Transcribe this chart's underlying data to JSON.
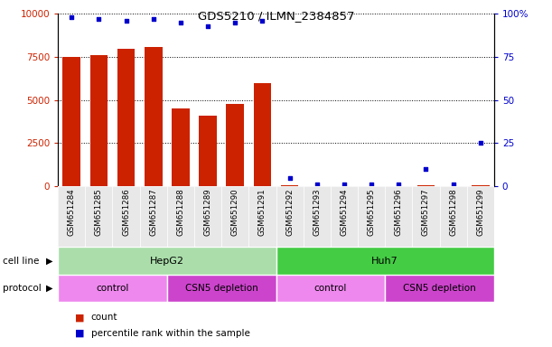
{
  "title": "GDS5210 / ILMN_2384857",
  "samples": [
    "GSM651284",
    "GSM651285",
    "GSM651286",
    "GSM651287",
    "GSM651288",
    "GSM651289",
    "GSM651290",
    "GSM651291",
    "GSM651292",
    "GSM651293",
    "GSM651294",
    "GSM651295",
    "GSM651296",
    "GSM651297",
    "GSM651298",
    "GSM651299"
  ],
  "counts": [
    7500,
    7600,
    8000,
    8100,
    4500,
    4100,
    4800,
    6000,
    50,
    20,
    20,
    20,
    30,
    80,
    20,
    80
  ],
  "percentile_ranks": [
    98,
    97,
    96,
    97,
    95,
    93,
    95,
    96,
    5,
    1,
    1,
    1,
    1,
    10,
    1,
    25
  ],
  "cell_line_groups": [
    {
      "label": "HepG2",
      "start": 0,
      "end": 7,
      "color": "#aaddaa"
    },
    {
      "label": "Huh7",
      "start": 8,
      "end": 15,
      "color": "#44cc44"
    }
  ],
  "protocol_groups": [
    {
      "label": "control",
      "start": 0,
      "end": 3,
      "color": "#ee88ee"
    },
    {
      "label": "CSN5 depletion",
      "start": 4,
      "end": 7,
      "color": "#cc44cc"
    },
    {
      "label": "control",
      "start": 8,
      "end": 11,
      "color": "#ee88ee"
    },
    {
      "label": "CSN5 depletion",
      "start": 12,
      "end": 15,
      "color": "#cc44cc"
    }
  ],
  "bar_color": "#cc2200",
  "dot_color": "#0000cc",
  "left_ylim": [
    0,
    10000
  ],
  "right_ylim": [
    0,
    100
  ],
  "left_yticks": [
    0,
    2500,
    5000,
    7500,
    10000
  ],
  "right_yticks": [
    0,
    25,
    50,
    75,
    100
  ],
  "legend_count_color": "#cc2200",
  "legend_rank_color": "#0000cc"
}
